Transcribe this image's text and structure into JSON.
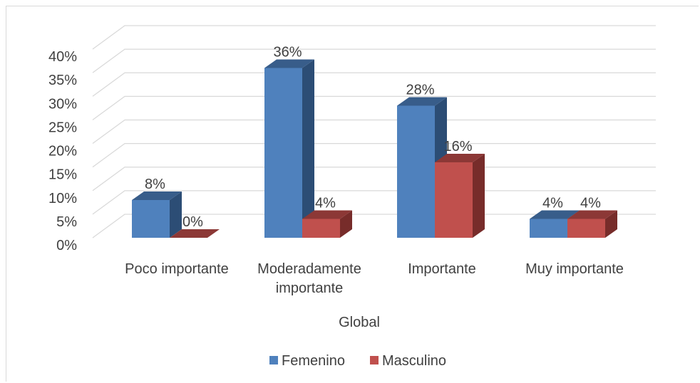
{
  "chart_data": {
    "type": "bar",
    "style": "3d-clustered-column",
    "categories": [
      "Poco importante",
      "Moderadamente importante",
      "Importante",
      "Muy importante"
    ],
    "category_label_lines": [
      [
        "Poco importante"
      ],
      [
        "Moderadamente",
        "importante"
      ],
      [
        "Importante"
      ],
      [
        "Muy importante"
      ]
    ],
    "series": [
      {
        "name": "Femenino",
        "values": [
          8,
          36,
          28,
          4
        ],
        "labels": [
          "8%",
          "36%",
          "28%",
          "4%"
        ]
      },
      {
        "name": "Masculino",
        "values": [
          0,
          4,
          16,
          4
        ],
        "labels": [
          "0%",
          "4%",
          "16%",
          "4%"
        ]
      }
    ],
    "xlabel": "Global",
    "ylabel": "",
    "ylim": [
      0,
      40
    ],
    "yticks": [
      0,
      5,
      10,
      15,
      20,
      25,
      30,
      35,
      40
    ],
    "ytick_labels": [
      "0%",
      "5%",
      "10%",
      "15%",
      "20%",
      "25%",
      "30%",
      "35%",
      "40%"
    ],
    "grid": true,
    "legend_position": "bottom",
    "colors": {
      "series": [
        "#4f81bd",
        "#c0504d"
      ],
      "series_side": [
        "#2c4d75",
        "#772c2a"
      ],
      "series_top": [
        "#385d8a",
        "#8c3836"
      ],
      "grid": "#d9d9d9",
      "text": "#404040"
    }
  }
}
